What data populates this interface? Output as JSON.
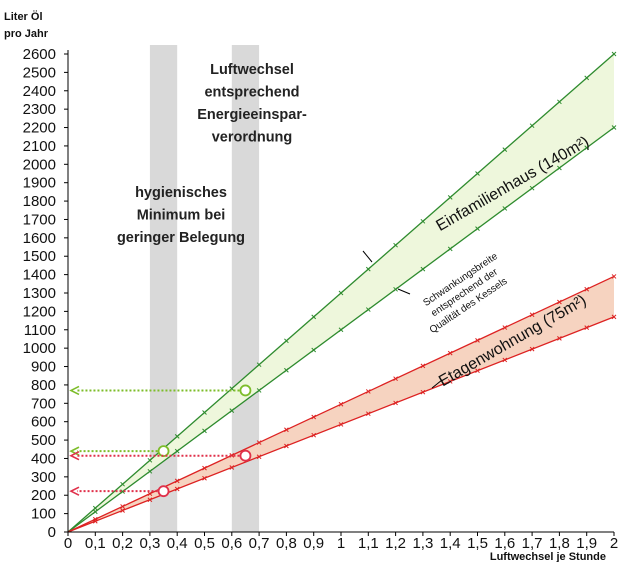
{
  "chart_data": {
    "type": "line",
    "ylabel_lines": [
      "Liter Öl",
      "pro Jahr"
    ],
    "xlabel": "Luftwechsel je Stunde",
    "xlim": [
      0,
      2
    ],
    "ylim": [
      0,
      2700
    ],
    "x_ticks": [
      "0",
      "0,1",
      "0,2",
      "0,3",
      "0,4",
      "0,5",
      "0,6",
      "0,7",
      "0,8",
      "0,9",
      "1",
      "1,1",
      "1,2",
      "1,3",
      "1,4",
      "1,5",
      "1,6",
      "1,7",
      "1,8",
      "1,9",
      "2"
    ],
    "y_ticks": [
      "0",
      "100",
      "200",
      "300",
      "400",
      "500",
      "600",
      "700",
      "800",
      "900",
      "1000",
      "1100",
      "1200",
      "1300",
      "1400",
      "1500",
      "1600",
      "1700",
      "1800",
      "1900",
      "2000",
      "2100",
      "2200",
      "2300",
      "2400",
      "2500",
      "2600"
    ],
    "bands": [
      {
        "x_from": 0.3,
        "x_to": 0.4,
        "label_lines": [
          "hygienisches",
          "Minimum bei",
          "geringer Belegung"
        ]
      },
      {
        "x_from": 0.6,
        "x_to": 0.7,
        "label_lines": [
          "Luftwechsel",
          "entsprechend",
          "Energieeinspar-",
          "verordnung"
        ]
      }
    ],
    "series": [
      {
        "name": "Einfamilienhaus (140m²)",
        "x": [
          0,
          2
        ],
        "upper": [
          0,
          2600
        ],
        "lower": [
          0,
          2200
        ],
        "line_color": "#2e8b2e",
        "fill_color": "#eef7dc"
      },
      {
        "name": "Etagenwohnung (75m²)",
        "x": [
          0,
          2
        ],
        "upper": [
          0,
          1390
        ],
        "lower": [
          0,
          1170
        ],
        "line_color": "#dd2222",
        "fill_color": "#f6d3c0"
      }
    ],
    "marker_step": 0.1,
    "highlights": [
      {
        "x": 0.65,
        "y": 770,
        "color": "#7dbd2a"
      },
      {
        "x": 0.35,
        "y": 440,
        "color": "#7dbd2a"
      },
      {
        "x": 0.65,
        "y": 415,
        "color": "#e0304a"
      },
      {
        "x": 0.35,
        "y": 222,
        "color": "#e0304a"
      }
    ],
    "range_label_lines": [
      "Schwankungsbreite",
      "entsprechend der",
      "Qualität des Kessels"
    ],
    "band_color": "#d9d9d9"
  }
}
